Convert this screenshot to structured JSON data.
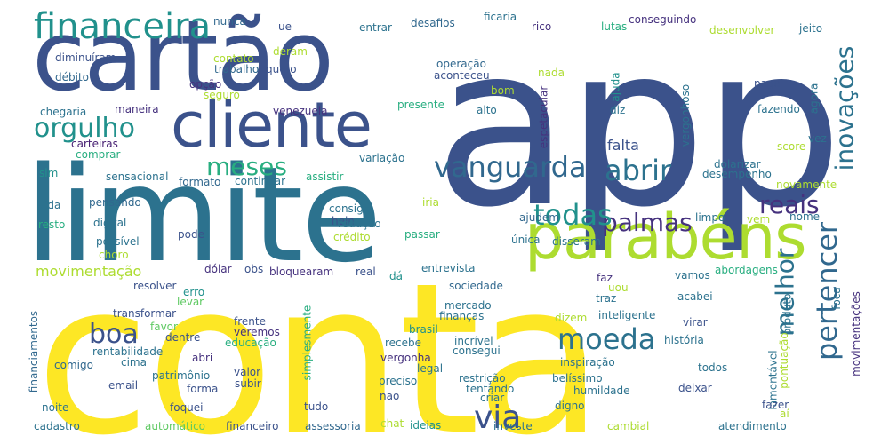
{
  "palette": {
    "navy": "#3b528b",
    "indigo": "#46327e",
    "purple": "#482173",
    "teal": "#2c728e",
    "blue": "#31688e",
    "cyan": "#21918c",
    "green": "#28ae80",
    "light_green": "#5ec962",
    "lime": "#addc30",
    "yellow": "#fde725"
  },
  "words": [
    "app",
    "conta",
    "cartão",
    "limite",
    "cliente",
    "parabéns",
    "financeira",
    "orgulho",
    "vanguarda",
    "meses",
    "abrir",
    "palmas",
    "todas",
    "reais",
    "inovações",
    "moeda",
    "boa",
    "melhor",
    "pertencer",
    "via",
    "movimentação",
    "falta",
    "nunca",
    "ue",
    "entrar",
    "desafios",
    "ficaria",
    "rico",
    "lutas",
    "conseguindo",
    "desenvolver",
    "jeito",
    "diminuíram",
    "contato",
    "deram",
    "trabalho",
    "quero",
    "operação",
    "aconteceu",
    "nada",
    "ajuda",
    "débito",
    "opção",
    "seguro",
    "bom",
    "alto",
    "espetacular",
    "vergonhoso",
    "paga",
    "agora",
    "chegaria",
    "maneira",
    "venezuela",
    "presente",
    "diz",
    "fazendo",
    "carteiras",
    "vez",
    "score",
    "comprar",
    "variação",
    "sim",
    "sensacional",
    "formato",
    "continuar",
    "assistir",
    "dolarizar",
    "desempenho",
    "novamente",
    "vida",
    "pensando",
    "hein",
    "consigo",
    "iria",
    "ajudem",
    "disseram",
    "limpo",
    "vem",
    "nome",
    "resto",
    "digital",
    "redução",
    "possível",
    "choro",
    "pode",
    "crédito",
    "passar",
    "única",
    "dólar",
    "obs",
    "bloquearam",
    "real",
    "dá",
    "entrevista",
    "faz",
    "vamos",
    "abordagens",
    "resolver",
    "erro",
    "levar",
    "sociedade",
    "traz",
    "uou",
    "acabei",
    "foca",
    "transformar",
    "mercado",
    "finanças",
    "dizem",
    "inteligente",
    "virar",
    "produto",
    "favor",
    "frente",
    "veremos",
    "dentre",
    "educação",
    "brasil",
    "recebe",
    "incrível",
    "história",
    "rentabilidade",
    "comigo",
    "abri",
    "vergonha",
    "consegui",
    "cima",
    "patrimônio",
    "valor",
    "legal",
    "preciso",
    "inspiração",
    "belíssimo",
    "todos",
    "lamentável",
    "pontuação",
    "email",
    "forma",
    "subir",
    "restrição",
    "tentando",
    "humildade",
    "deixar",
    "noite",
    "foquei",
    "tudo",
    "nao",
    "criar",
    "digno",
    "fazer",
    "aí",
    "cadastro",
    "automático",
    "financeiro",
    "assessoria",
    "chat",
    "ideias",
    "investe",
    "cambial",
    "atendimento",
    "financiamentos",
    "simplesmente",
    "movimentações"
  ]
}
